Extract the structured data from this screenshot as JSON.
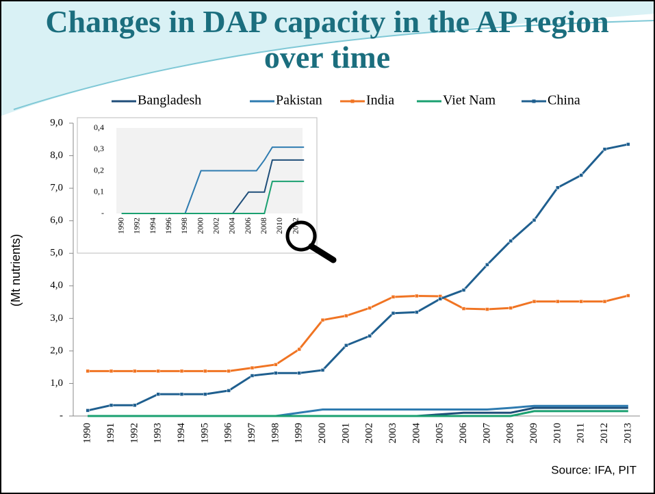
{
  "chart_data": [
    {
      "type": "line",
      "title": "Changes in DAP capacity in the AP region over time",
      "y_label": "(Mt nutrients)",
      "annotation": "Source: IFA, PIT",
      "legend": "top",
      "categories": [
        "1990",
        "1991",
        "1992",
        "1993",
        "1994",
        "1995",
        "1996",
        "1997",
        "1998",
        "1999",
        "2000",
        "2001",
        "2002",
        "2003",
        "2004",
        "2005",
        "2006",
        "2007",
        "2008",
        "2009",
        "2010",
        "2011",
        "2012",
        "2013"
      ],
      "ylim": [
        0,
        9
      ],
      "yticks": [
        {
          "value": 0,
          "label": "-"
        },
        {
          "value": 1,
          "label": "1,0"
        },
        {
          "value": 2,
          "label": "2,0"
        },
        {
          "value": 3,
          "label": "3,0"
        },
        {
          "value": 4,
          "label": "4,0"
        },
        {
          "value": 5,
          "label": "5,0"
        },
        {
          "value": 6,
          "label": "6,0"
        },
        {
          "value": 7,
          "label": "7,0"
        },
        {
          "value": 8,
          "label": "8,0"
        },
        {
          "value": 9,
          "label": "9,0"
        }
      ],
      "series": [
        {
          "name": "Bangladesh",
          "color": "#1f4e79",
          "values": [
            0,
            0,
            0,
            0,
            0,
            0,
            0,
            0,
            0,
            0,
            0,
            0,
            0,
            0,
            0,
            0.05,
            0.1,
            0.1,
            0.1,
            0.25,
            0.25,
            0.25,
            0.25,
            0.25
          ]
        },
        {
          "name": "Pakistan",
          "color": "#2e7bb0",
          "values": [
            0,
            0,
            0,
            0,
            0,
            0,
            0,
            0,
            0,
            0.1,
            0.2,
            0.2,
            0.2,
            0.2,
            0.2,
            0.2,
            0.2,
            0.2,
            0.25,
            0.31,
            0.31,
            0.31,
            0.31,
            0.31
          ]
        },
        {
          "name": "India",
          "color": "#f07423",
          "marker": "square",
          "values": [
            1.38,
            1.38,
            1.38,
            1.38,
            1.38,
            1.38,
            1.38,
            1.48,
            1.58,
            2.05,
            2.95,
            3.08,
            3.32,
            3.66,
            3.69,
            3.68,
            3.3,
            3.28,
            3.32,
            3.52,
            3.52,
            3.52,
            3.52,
            3.7
          ]
        },
        {
          "name": "Viet Nam",
          "color": "#1aa070",
          "values": [
            0,
            0,
            0,
            0,
            0,
            0,
            0,
            0,
            0,
            0,
            0,
            0,
            0,
            0,
            0,
            0,
            0,
            0,
            0,
            0.15,
            0.15,
            0.15,
            0.15,
            0.15
          ]
        },
        {
          "name": "China",
          "color": "#1f5f8f",
          "marker": "square",
          "values": [
            0.17,
            0.33,
            0.33,
            0.67,
            0.67,
            0.67,
            0.78,
            1.24,
            1.32,
            1.32,
            1.41,
            2.17,
            2.46,
            3.16,
            3.19,
            3.6,
            3.87,
            4.65,
            5.38,
            6.02,
            7.02,
            7.4,
            8.2,
            8.35
          ]
        }
      ]
    },
    {
      "type": "line",
      "categories": [
        "1990",
        null,
        "1992",
        null,
        "1994",
        null,
        "1996",
        null,
        "1998",
        null,
        "2000",
        null,
        "2002",
        null,
        "2004",
        null,
        "2006",
        null,
        "2008",
        null,
        "2010",
        null,
        "2012",
        null
      ],
      "ylim": [
        0,
        0.4
      ],
      "yticks": [
        {
          "value": 0,
          "label": "-"
        },
        {
          "value": 0.1,
          "label": "0,1"
        },
        {
          "value": 0.2,
          "label": "0,2"
        },
        {
          "value": 0.3,
          "label": "0,3"
        },
        {
          "value": 0.4,
          "label": "0,4"
        }
      ],
      "series": [
        {
          "color": "#1f4e79",
          "values": [
            0,
            0,
            0,
            0,
            0,
            0,
            0,
            0,
            0,
            0,
            0,
            0,
            0,
            0,
            0,
            0.05,
            0.1,
            0.1,
            0.1,
            0.25,
            0.25,
            0.25,
            0.25,
            0.25
          ]
        },
        {
          "color": "#2e7bb0",
          "values": [
            0,
            0,
            0,
            0,
            0,
            0,
            0,
            0,
            0,
            0.1,
            0.2,
            0.2,
            0.2,
            0.2,
            0.2,
            0.2,
            0.2,
            0.2,
            0.25,
            0.31,
            0.31,
            0.31,
            0.31,
            0.31
          ]
        },
        {
          "color": "#1aa070",
          "values": [
            0,
            0,
            0,
            0,
            0,
            0,
            0,
            0,
            0,
            0,
            0,
            0,
            0,
            0,
            0,
            0,
            0,
            0,
            0,
            0.15,
            0.15,
            0.15,
            0.15,
            0.15
          ]
        }
      ]
    }
  ]
}
